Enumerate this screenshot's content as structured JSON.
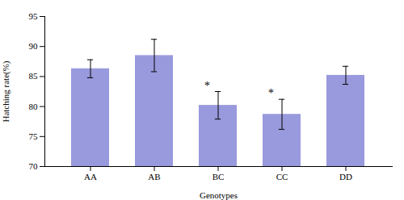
{
  "chart_data": {
    "type": "bar",
    "categories": [
      "AA",
      "AB",
      "BC",
      "CC",
      "DD"
    ],
    "values": [
      86.3,
      88.5,
      80.2,
      78.7,
      85.2
    ],
    "errors": [
      1.5,
      2.7,
      2.3,
      2.5,
      1.5
    ],
    "color": "#9999dd",
    "xlabel": "Genotypes",
    "ylabel": "Hatching rate(%)",
    "ylim": [
      70,
      95
    ],
    "yticks": [
      70,
      75,
      80,
      85,
      90,
      95
    ],
    "grid": false,
    "annotations": [
      {
        "text": "*",
        "category": "BC"
      },
      {
        "text": "*",
        "category": "CC"
      }
    ]
  }
}
